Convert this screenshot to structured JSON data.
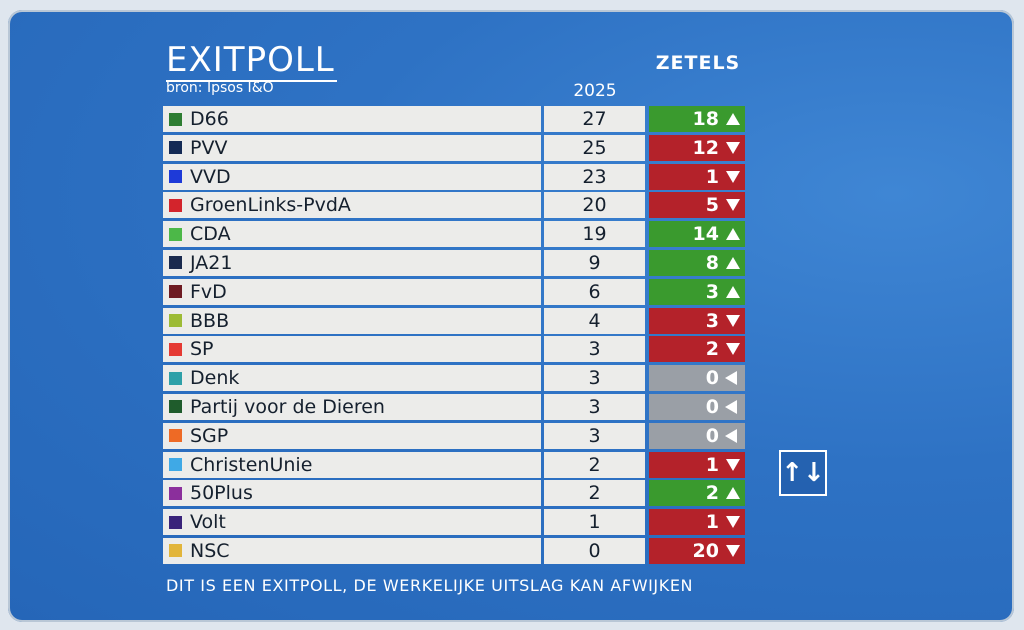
{
  "header": {
    "title": "EXITPOLL",
    "source": "bron: Ipsos I&O",
    "seats_column": "ZETELS",
    "year_column": "2025"
  },
  "colors": {
    "up": "#3a9a2e",
    "down": "#b4222a",
    "same": "#9a9fa6"
  },
  "parties": [
    {
      "name": "D66",
      "seats": "27",
      "change": "18",
      "direction": "up",
      "color": "#2e7d32"
    },
    {
      "name": "PVV",
      "seats": "25",
      "change": "12",
      "direction": "down",
      "color": "#142a55"
    },
    {
      "name": "VVD",
      "seats": "23",
      "change": "1",
      "direction": "down",
      "color": "#1e3ad8"
    },
    {
      "name": "GroenLinks-PvdA",
      "seats": "20",
      "change": "5",
      "direction": "down",
      "color": "#d3242c"
    },
    {
      "name": "CDA",
      "seats": "19",
      "change": "14",
      "direction": "up",
      "color": "#4cb848"
    },
    {
      "name": "JA21",
      "seats": "9",
      "change": "8",
      "direction": "up",
      "color": "#1a2a4e"
    },
    {
      "name": "FvD",
      "seats": "6",
      "change": "3",
      "direction": "up",
      "color": "#6e1b22"
    },
    {
      "name": "BBB",
      "seats": "4",
      "change": "3",
      "direction": "down",
      "color": "#9dbb35"
    },
    {
      "name": "SP",
      "seats": "3",
      "change": "2",
      "direction": "down",
      "color": "#e53a33"
    },
    {
      "name": "Denk",
      "seats": "3",
      "change": "0",
      "direction": "same",
      "color": "#2ea0a8"
    },
    {
      "name": "Partij voor de Dieren",
      "seats": "3",
      "change": "0",
      "direction": "same",
      "color": "#1f5c2c"
    },
    {
      "name": "SGP",
      "seats": "3",
      "change": "0",
      "direction": "same",
      "color": "#ee6a25"
    },
    {
      "name": "ChristenUnie",
      "seats": "2",
      "change": "1",
      "direction": "down",
      "color": "#3fa9e6"
    },
    {
      "name": "50Plus",
      "seats": "2",
      "change": "2",
      "direction": "up",
      "color": "#8b2f9c"
    },
    {
      "name": "Volt",
      "seats": "1",
      "change": "1",
      "direction": "down",
      "color": "#3a237a"
    },
    {
      "name": "NSC",
      "seats": "0",
      "change": "20",
      "direction": "down",
      "color": "#e2b53a"
    }
  ],
  "footer": "DIT IS EEN EXITPOLL, DE WERKELIJKE UITSLAG KAN AFWIJKEN",
  "sort_button": {
    "icon": "sort-arrows-icon",
    "glyph": "↑↓"
  }
}
